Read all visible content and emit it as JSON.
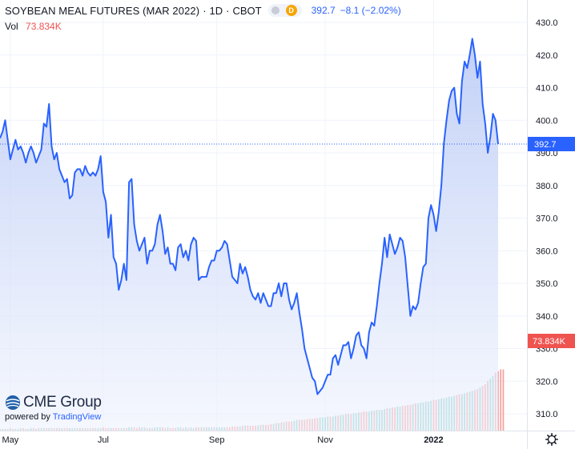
{
  "header": {
    "title": "SOYBEAN MEAL FUTURES (MAR 2022)",
    "interval": "1D",
    "exchange": "CBOT",
    "delay_badge": "D",
    "last": "392.7",
    "change": "−8.1 (−2.02%)"
  },
  "volume": {
    "label": "Vol",
    "value": "73.834K"
  },
  "branding": {
    "logo_text": "CME Group",
    "powered_prefix": "powered by",
    "powered_brand": "TradingView"
  },
  "colors": {
    "line": "#2962ff",
    "area_top": "#b7c8f5",
    "area_bottom": "#eef2fd",
    "volume_up": "#26a69a",
    "volume_down": "#ef5350",
    "last_price_label": "#2962ff",
    "volume_label": "#ef5350",
    "grid": "#f0f3fa"
  },
  "settings_icon": "gear-icon",
  "chart_data": {
    "type": "area",
    "y_axis_ticks": [
      "430.0",
      "420.0",
      "410.0",
      "400.0",
      "390.0",
      "380.0",
      "370.0",
      "360.0",
      "350.0",
      "340.0",
      "330.0",
      "320.0",
      "310.0"
    ],
    "ylim": [
      307,
      433
    ],
    "x_labels": [
      {
        "label": "May",
        "index": 4
      },
      {
        "label": "Jul",
        "index": 40
      },
      {
        "label": "Sep",
        "index": 84
      },
      {
        "label": "Nov",
        "index": 126
      },
      {
        "label": "2022",
        "index": 168
      }
    ],
    "last_price_label": "392.7",
    "volume_price_label": "73.834K",
    "price": [
      394.5,
      396.5,
      400,
      394,
      388,
      391,
      394,
      391,
      392,
      390,
      387,
      390,
      392,
      390,
      387,
      389,
      391,
      399,
      398,
      405,
      392,
      388,
      390,
      385,
      383,
      381,
      382,
      376,
      377,
      384,
      385,
      385,
      383,
      386,
      384,
      383,
      384,
      383,
      385,
      389,
      378,
      375,
      364,
      371,
      358,
      356,
      348,
      351,
      356,
      351,
      381,
      382,
      368,
      363,
      360,
      362,
      364,
      356,
      360,
      360,
      362,
      368,
      371,
      366,
      359,
      361,
      356,
      356,
      354,
      361,
      362,
      358,
      360,
      357,
      362,
      364,
      363,
      351,
      352,
      352,
      352,
      355,
      357,
      357,
      360,
      360,
      361,
      363,
      362,
      357,
      352,
      351,
      350,
      356,
      353,
      355,
      352,
      348,
      346,
      345,
      347,
      344,
      347,
      345,
      343,
      343,
      347,
      347,
      350,
      346,
      350,
      350,
      345,
      342,
      344,
      347,
      341,
      336,
      330,
      327,
      324,
      321,
      320,
      316,
      317,
      318,
      320,
      322,
      322,
      327,
      328,
      325,
      328,
      331,
      331,
      332,
      327,
      330,
      334,
      335,
      331,
      330,
      327,
      335,
      338,
      337,
      343,
      350,
      356,
      364,
      358,
      365,
      362,
      359,
      361,
      364,
      363,
      358,
      349,
      340,
      343,
      342,
      344,
      350,
      355,
      356,
      370,
      374,
      371,
      366,
      372,
      380,
      393,
      400,
      406,
      409,
      410,
      402,
      399,
      412,
      418,
      416,
      420,
      425,
      420,
      413,
      418,
      405,
      399,
      390,
      395,
      402,
      400,
      392.7
    ],
    "volume_k": [
      2,
      2,
      2,
      2,
      3,
      2,
      2,
      2,
      3,
      3,
      2,
      2,
      3,
      3,
      2,
      3,
      3,
      3,
      3,
      3,
      3,
      3,
      3,
      3,
      3,
      3,
      3,
      3,
      3,
      3,
      3,
      3,
      3,
      3,
      3,
      3,
      3,
      3,
      3,
      3,
      4,
      3,
      3,
      3,
      3,
      3,
      3,
      3,
      3,
      3,
      4,
      4,
      4,
      3,
      4,
      4,
      4,
      3,
      3,
      3,
      4,
      4,
      4,
      4,
      3,
      4,
      3,
      3,
      3,
      4,
      4,
      3,
      4,
      3,
      4,
      3,
      4,
      4,
      4,
      4,
      4,
      4,
      4,
      4,
      4,
      4,
      4,
      4,
      4,
      4,
      5,
      5,
      5,
      5,
      6,
      6,
      6,
      6,
      6,
      6,
      6,
      7,
      7,
      7,
      7,
      8,
      8,
      9,
      9,
      10,
      10,
      11,
      11,
      11,
      12,
      13,
      13,
      13,
      13,
      14,
      14,
      14,
      15,
      15,
      16,
      16,
      16,
      17,
      17,
      17,
      18,
      18,
      19,
      19,
      20,
      20,
      20,
      21,
      21,
      22,
      22,
      23,
      23,
      23,
      24,
      24,
      25,
      25,
      25,
      26,
      27,
      27,
      28,
      28,
      29,
      29,
      30,
      30,
      31,
      31,
      32,
      33,
      33,
      34,
      34,
      35,
      35,
      36,
      37,
      37,
      38,
      39,
      39,
      40,
      41,
      41,
      42,
      43,
      44,
      44,
      45,
      46,
      47,
      48,
      49,
      50,
      52,
      54,
      56,
      60,
      63,
      66,
      70,
      72,
      74,
      73.834
    ],
    "volume_up": [
      1,
      0,
      1,
      1,
      0,
      1,
      0,
      1,
      1,
      0,
      0,
      1,
      1,
      0,
      1,
      0,
      1,
      1,
      0,
      1,
      0,
      0,
      1,
      0,
      1,
      0,
      0,
      1,
      1,
      1,
      0,
      1,
      0,
      1,
      0,
      0,
      1,
      0,
      1,
      1,
      0,
      0,
      0,
      1,
      0,
      0,
      0,
      1,
      1,
      0,
      1,
      1,
      0,
      0,
      0,
      1,
      1,
      0,
      1,
      0,
      1,
      1,
      1,
      0,
      0,
      1,
      0,
      0,
      0,
      1,
      1,
      0,
      1,
      0,
      1,
      1,
      0,
      0,
      1,
      0,
      1,
      1,
      1,
      0,
      1,
      1,
      1,
      1,
      0,
      0,
      0,
      0,
      0,
      1,
      0,
      1,
      0,
      0,
      0,
      0,
      1,
      0,
      1,
      0,
      0,
      0,
      1,
      0,
      1,
      0,
      1,
      0,
      0,
      0,
      1,
      1,
      0,
      0,
      0,
      0,
      0,
      0,
      0,
      0,
      1,
      1,
      1,
      1,
      0,
      1,
      1,
      0,
      1,
      1,
      0,
      1,
      0,
      1,
      1,
      1,
      0,
      0,
      0,
      1,
      1,
      0,
      1,
      1,
      1,
      1,
      0,
      1,
      0,
      0,
      1,
      1,
      0,
      0,
      0,
      0,
      1,
      0,
      1,
      1,
      1,
      1,
      1,
      1,
      0,
      0,
      1,
      1,
      1,
      1,
      1,
      1,
      1,
      0,
      0,
      1,
      1,
      0,
      1,
      1,
      0,
      0,
      1,
      0,
      0,
      0,
      1,
      1,
      0,
      0
    ],
    "vol_max_k": 145
  }
}
